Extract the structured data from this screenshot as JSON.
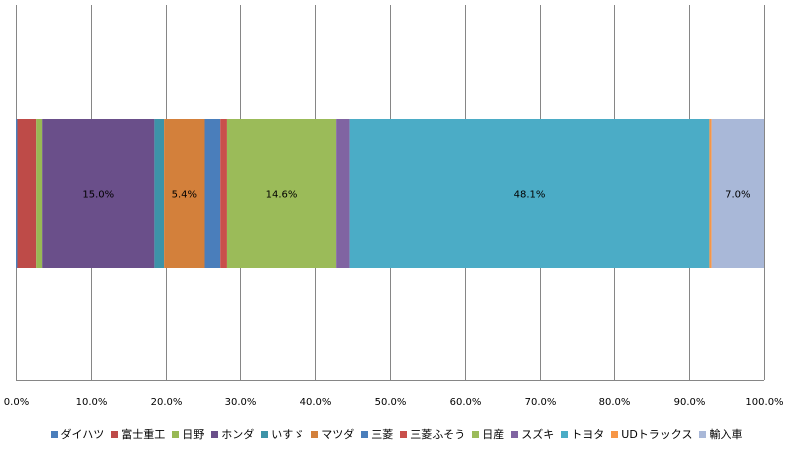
{
  "chart_data": {
    "type": "bar",
    "orientation": "horizontal",
    "stacked": true,
    "title": "",
    "xlabel": "",
    "ylabel": "",
    "xlim": [
      0,
      1.0
    ],
    "x_ticks": [
      "0.0%",
      "10.0%",
      "20.0%",
      "30.0%",
      "40.0%",
      "50.0%",
      "60.0%",
      "70.0%",
      "80.0%",
      "90.0%",
      "100.0%"
    ],
    "grid": "vertical",
    "legend_position": "bottom",
    "categories": [
      ""
    ],
    "series": [
      {
        "name": "ダイハツ",
        "value": 0.002,
        "color": "#4a7ebb",
        "label": ""
      },
      {
        "name": "富士重工",
        "value": 0.025,
        "color": "#be4b48",
        "label": ""
      },
      {
        "name": "日野",
        "value": 0.008,
        "color": "#98b954",
        "label": ""
      },
      {
        "name": "ホンダ",
        "value": 0.15,
        "color": "#6a4f8a",
        "label": "15.0%"
      },
      {
        "name": "いすゞ",
        "value": 0.013,
        "color": "#3d93a8",
        "label": ""
      },
      {
        "name": "マツダ",
        "value": 0.054,
        "color": "#d3803b",
        "label": "5.4%"
      },
      {
        "name": "三菱",
        "value": 0.021,
        "color": "#4a7ebb",
        "label": ""
      },
      {
        "name": "三菱ふそう",
        "value": 0.009,
        "color": "#c94f4b",
        "label": ""
      },
      {
        "name": "日産",
        "value": 0.146,
        "color": "#9bbb59",
        "label": "14.6%"
      },
      {
        "name": "スズキ",
        "value": 0.018,
        "color": "#8064a2",
        "label": ""
      },
      {
        "name": "トヨタ",
        "value": 0.481,
        "color": "#4bacc6",
        "label": "48.1%"
      },
      {
        "name": "UDトラックス",
        "value": 0.003,
        "color": "#f79646",
        "label": ""
      },
      {
        "name": "輸入車",
        "value": 0.07,
        "color": "#a9b8d8",
        "label": "7.0%"
      }
    ]
  },
  "colors": {
    "grid": "#868686",
    "axis": "#868686"
  }
}
